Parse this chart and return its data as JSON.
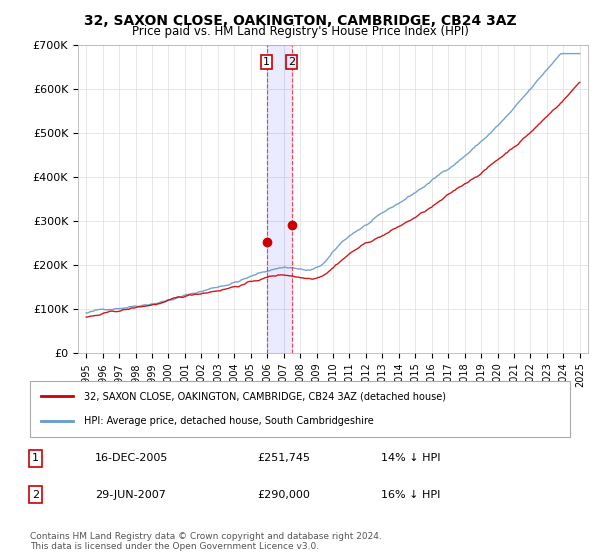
{
  "title": "32, SAXON CLOSE, OAKINGTON, CAMBRIDGE, CB24 3AZ",
  "subtitle": "Price paid vs. HM Land Registry's House Price Index (HPI)",
  "legend_line1": "32, SAXON CLOSE, OAKINGTON, CAMBRIDGE, CB24 3AZ (detached house)",
  "legend_line2": "HPI: Average price, detached house, South Cambridgeshire",
  "transaction1_date": "16-DEC-2005",
  "transaction1_price": "£251,745",
  "transaction1_hpi": "14% ↓ HPI",
  "transaction2_date": "29-JUN-2007",
  "transaction2_price": "£290,000",
  "transaction2_hpi": "16% ↓ HPI",
  "footer": "Contains HM Land Registry data © Crown copyright and database right 2024.\nThis data is licensed under the Open Government Licence v3.0.",
  "hpi_color": "#6699cc",
  "price_color": "#cc0000",
  "marker1_x": 2005.96,
  "marker1_y": 251745,
  "marker2_x": 2007.49,
  "marker2_y": 290000,
  "vline1_x": 2005.96,
  "vline2_x": 2007.49,
  "ylim": [
    0,
    700000
  ],
  "xlim_start": 1995,
  "xlim_end": 2025
}
